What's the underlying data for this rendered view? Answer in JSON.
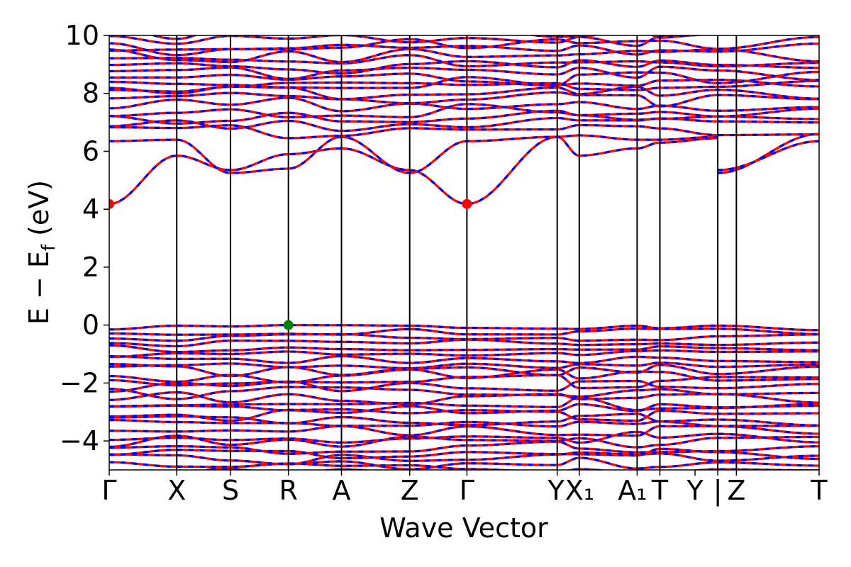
{
  "chart_data": {
    "type": "line",
    "title": "",
    "xlabel": "Wave Vector",
    "ylabel": "E − E_f (eV)",
    "ylabel_main": "E − E",
    "ylabel_sub": "f",
    "ylabel_suffix": " (eV)",
    "ylim": [
      -5,
      10
    ],
    "yticks": [
      -4,
      -2,
      0,
      2,
      4,
      6,
      8,
      10
    ],
    "ytick_labels": [
      "−4",
      "−2",
      "0",
      "2",
      "4",
      "6",
      "8",
      "10"
    ],
    "xlim": [
      0,
      10.3
    ],
    "kpoints": [
      {
        "label": "Γ",
        "x": 0.0
      },
      {
        "label": "X",
        "x": 0.98
      },
      {
        "label": "S",
        "x": 1.76
      },
      {
        "label": "R",
        "x": 2.6
      },
      {
        "label": "A",
        "x": 3.37
      },
      {
        "label": "Z",
        "x": 4.36
      },
      {
        "label": "Γ",
        "x": 5.19
      },
      {
        "label": "Y",
        "x": 6.5
      },
      {
        "label": "X₁",
        "x": 6.82
      },
      {
        "label": "A₁",
        "x": 7.66
      },
      {
        "label": "T",
        "x": 7.99
      },
      {
        "label": "Y",
        "x": 8.5
      },
      {
        "label": "|",
        "x": 8.83
      },
      {
        "label": "Z",
        "x": 9.1
      },
      {
        "label": "T",
        "x": 10.3
      }
    ],
    "path_breaks": [
      0,
      0.98,
      1.76,
      2.6,
      3.37,
      4.36,
      5.19,
      6.5,
      6.82,
      7.66,
      7.99,
      8.83,
      10.3
    ],
    "series": [
      {
        "color": "#ff0000",
        "style": "solid"
      },
      {
        "color": "#0000ff",
        "style": "dashed"
      }
    ],
    "conduction_bands": {
      "lowest": {
        "x": [
          0,
          0.98,
          1.76,
          2.6,
          3.37,
          4.36,
          5.19,
          6.5,
          6.82,
          7.66,
          7.99,
          8.83,
          8.83,
          10.3
        ],
        "y": [
          4.18,
          5.85,
          5.35,
          5.9,
          6.1,
          5.35,
          4.18,
          6.5,
          5.85,
          6.1,
          6.3,
          6.45,
          5.35,
          6.35
        ]
      },
      "second": {
        "x": [
          0,
          0.98,
          1.76,
          2.6,
          3.37,
          4.36,
          5.19,
          6.5,
          6.82,
          7.66,
          7.99,
          8.83,
          8.83,
          10.3
        ],
        "y": [
          6.35,
          6.4,
          5.25,
          5.4,
          6.5,
          5.25,
          6.35,
          6.5,
          6.55,
          6.4,
          6.4,
          6.5,
          5.25,
          6.6
        ]
      }
    },
    "extrema_markers": [
      {
        "name": "CBM",
        "x": [
          0,
          5.19
        ],
        "y": [
          4.18,
          4.18
        ],
        "color": "#ff0000"
      },
      {
        "name": "VBM",
        "x": [
          2.6
        ],
        "y": [
          0.0
        ],
        "color": "#008000"
      }
    ],
    "grid": false,
    "legend": "none"
  }
}
